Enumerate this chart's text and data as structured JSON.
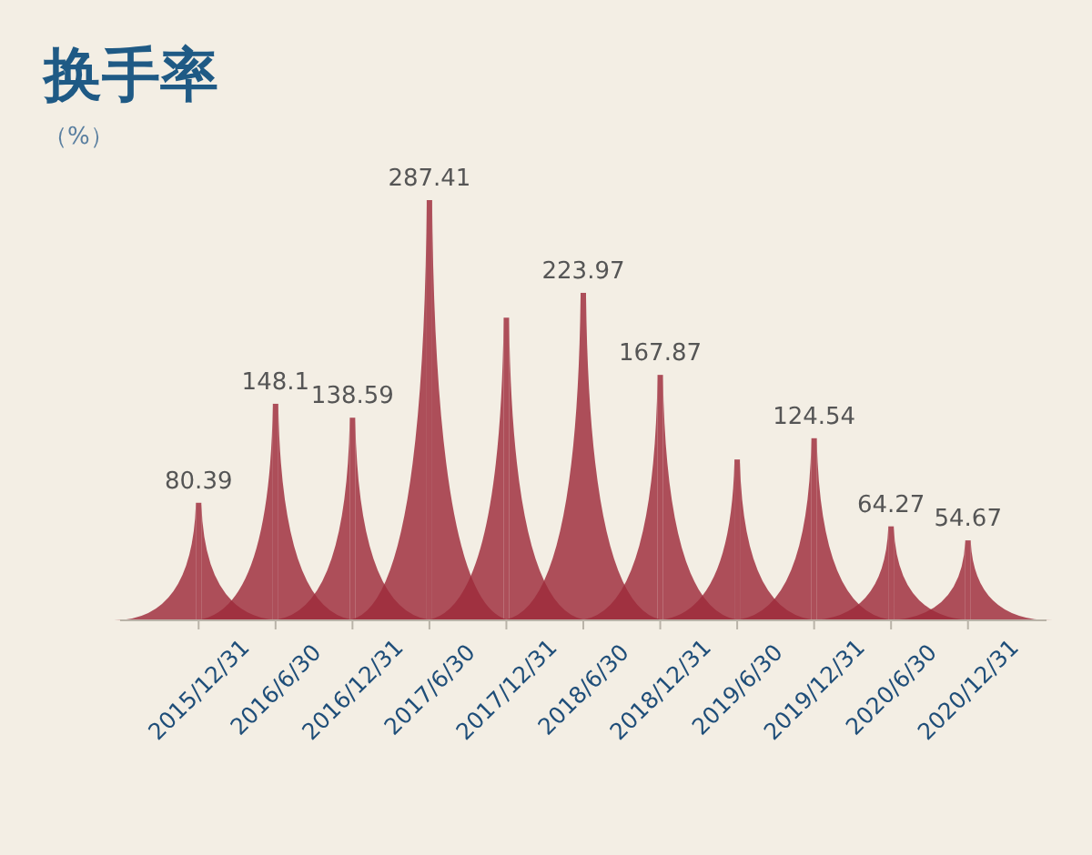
{
  "chart_data": {
    "type": "bar",
    "title": "换手率",
    "subtitle": "（%）",
    "categories": [
      "2015/12/31",
      "2016/6/30",
      "2016/12/31",
      "2017/6/30",
      "2017/12/31",
      "2018/6/30",
      "2018/12/31",
      "2019/6/30",
      "2019/12/31",
      "2020/6/30",
      "2020/12/31"
    ],
    "values": [
      80.39,
      148.1,
      138.59,
      287.41,
      207,
      223.97,
      167.87,
      110,
      124.54,
      64.27,
      54.67
    ],
    "value_labels": [
      "80.39",
      "148.1",
      "138.59",
      "287.41",
      null,
      "223.97",
      "167.87",
      null,
      "124.54",
      "64.27",
      "54.67"
    ],
    "color": "#9e2b3b",
    "tick_labels": "x"
  }
}
